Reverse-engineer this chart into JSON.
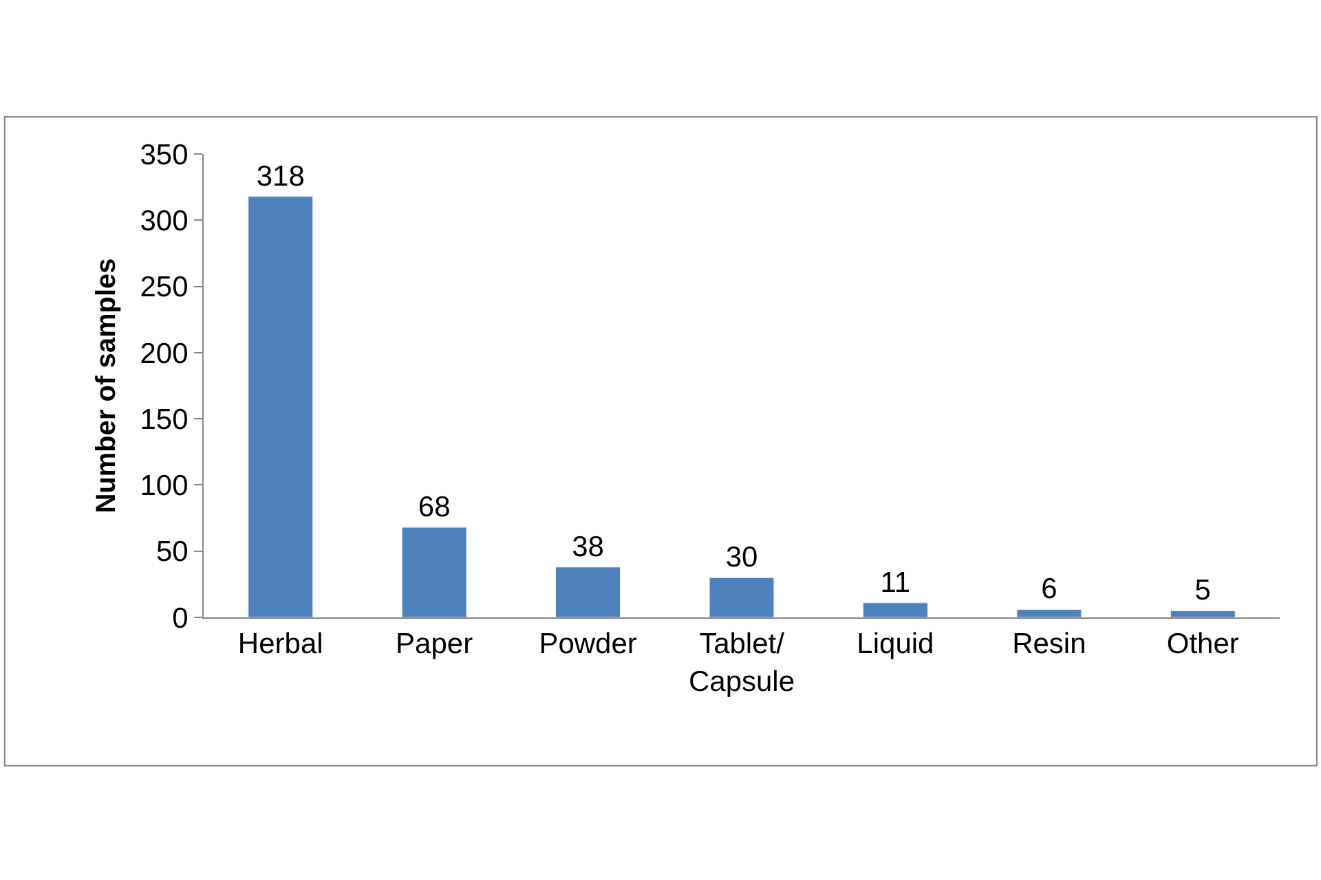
{
  "chart_data": {
    "type": "bar",
    "ylabel": "Number of samples",
    "categories": [
      "Herbal",
      "Paper",
      "Powder",
      "Tablet/ Capsule",
      "Liquid",
      "Resin",
      "Other"
    ],
    "values": [
      318,
      68,
      38,
      30,
      11,
      6,
      5
    ],
    "color": "#4f81bd",
    "ylim": [
      0,
      350
    ],
    "yticks": [
      0,
      50,
      100,
      150,
      200,
      250,
      300,
      350
    ],
    "data_labels": true
  }
}
